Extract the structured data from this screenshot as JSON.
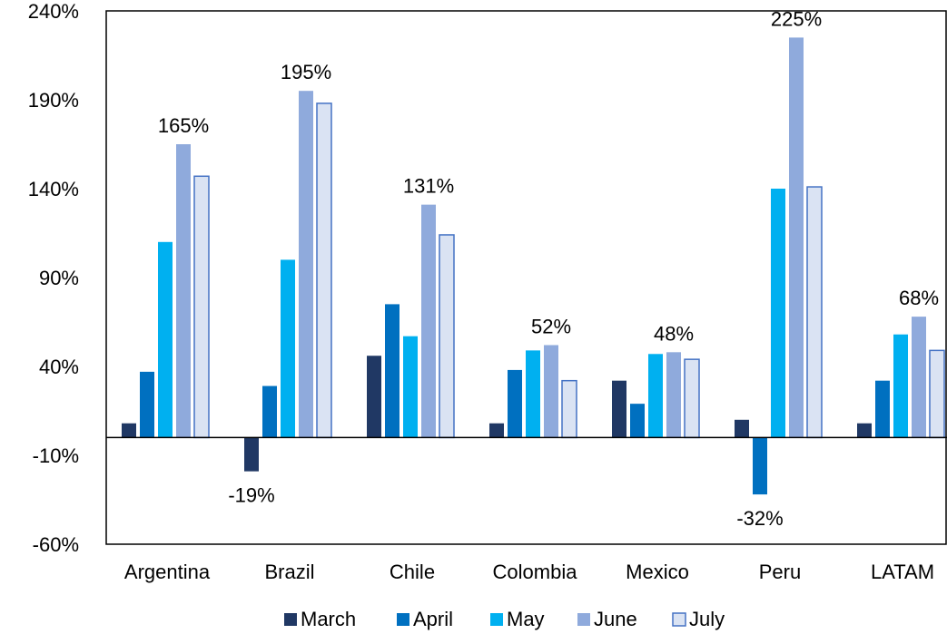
{
  "chart_data": {
    "type": "bar",
    "title": "",
    "xlabel": "",
    "ylabel": "",
    "ylim": [
      -60,
      240
    ],
    "yticks": [
      -60,
      -10,
      40,
      90,
      140,
      190,
      240
    ],
    "ytick_labels": [
      "-60%",
      "-10%",
      "40%",
      "90%",
      "140%",
      "190%",
      "240%"
    ],
    "categories": [
      "Argentina",
      "Brazil",
      "Chile",
      "Colombia",
      "Mexico",
      "Peru",
      "LATAM"
    ],
    "series": [
      {
        "name": "March",
        "color": "#203864",
        "values": [
          8,
          -19,
          46,
          8,
          32,
          10,
          8
        ]
      },
      {
        "name": "April",
        "color": "#0070C0",
        "values": [
          37,
          29,
          75,
          38,
          19,
          -32,
          32
        ]
      },
      {
        "name": "May",
        "color": "#00B0F0",
        "values": [
          110,
          100,
          57,
          49,
          47,
          140,
          58
        ]
      },
      {
        "name": "June",
        "color": "#8FAADC",
        "values": [
          165,
          195,
          131,
          52,
          48,
          225,
          68
        ]
      },
      {
        "name": "July",
        "color": "#DAE3F3",
        "stroke": "#4472C4",
        "values": [
          147,
          188,
          114,
          32,
          44,
          141,
          49
        ]
      }
    ],
    "data_labels": [
      {
        "category": "Argentina",
        "series": "June",
        "text": "165%"
      },
      {
        "category": "Brazil",
        "series": "March",
        "text": "-19%"
      },
      {
        "category": "Brazil",
        "series": "June",
        "text": "195%"
      },
      {
        "category": "Chile",
        "series": "June",
        "text": "131%"
      },
      {
        "category": "Colombia",
        "series": "June",
        "text": "52%"
      },
      {
        "category": "Mexico",
        "series": "June",
        "text": "48%"
      },
      {
        "category": "Peru",
        "series": "April",
        "text": "-32%"
      },
      {
        "category": "Peru",
        "series": "June",
        "text": "225%"
      },
      {
        "category": "LATAM",
        "series": "June",
        "text": "68%"
      }
    ],
    "legend_position": "bottom",
    "grid": false
  }
}
